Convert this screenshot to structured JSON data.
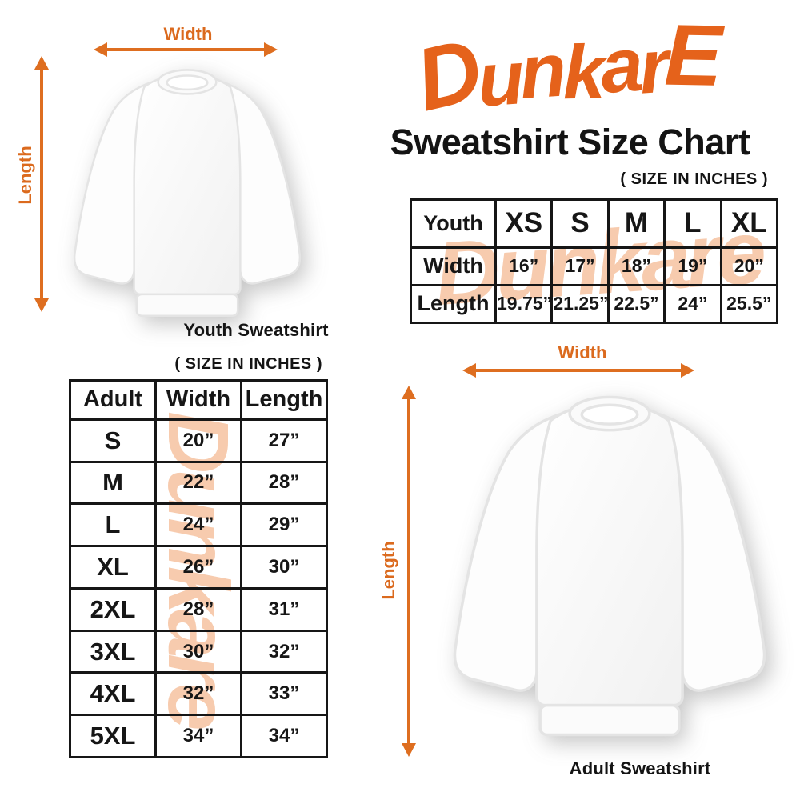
{
  "header": {
    "brand": "DunkarE",
    "title": "Sweatshirt Size Chart",
    "size_note": "( SIZE IN INCHES )"
  },
  "watermark": {
    "text": "Dunkare"
  },
  "youth_diagram": {
    "width_label": "Width",
    "length_label": "Length",
    "caption": "Youth Sweatshirt"
  },
  "adult_diagram": {
    "width_label": "Width",
    "length_label": "Length",
    "caption": "Adult Sweatshirt"
  },
  "adult_section": {
    "size_note": "( SIZE IN INCHES )"
  },
  "chart_data": [
    {
      "type": "table",
      "title": "Youth Sweatshirt Size Chart (inches)",
      "columns": [
        "Youth",
        "XS",
        "S",
        "M",
        "L",
        "XL"
      ],
      "rows": [
        [
          "Width",
          "16”",
          "17”",
          "18”",
          "19”",
          "20”"
        ],
        [
          "Length",
          "19.75”",
          "21.25”",
          "22.5”",
          "24”",
          "25.5”"
        ]
      ]
    },
    {
      "type": "table",
      "title": "Adult Sweatshirt Size Chart (inches)",
      "columns": [
        "Adult",
        "Width",
        "Length"
      ],
      "rows": [
        [
          "S",
          "20”",
          "27”"
        ],
        [
          "M",
          "22”",
          "28”"
        ],
        [
          "L",
          "24”",
          "29”"
        ],
        [
          "XL",
          "26”",
          "30”"
        ],
        [
          "2XL",
          "28”",
          "31”"
        ],
        [
          "3XL",
          "30”",
          "32”"
        ],
        [
          "4XL",
          "32”",
          "33”"
        ],
        [
          "5XL",
          "34”",
          "34”"
        ]
      ]
    }
  ],
  "colors": {
    "brand_orange": "#E5621B",
    "arrow_orange": "#DE6E20",
    "watermark_peach": "#F7CBAE",
    "text_black": "#141414"
  }
}
